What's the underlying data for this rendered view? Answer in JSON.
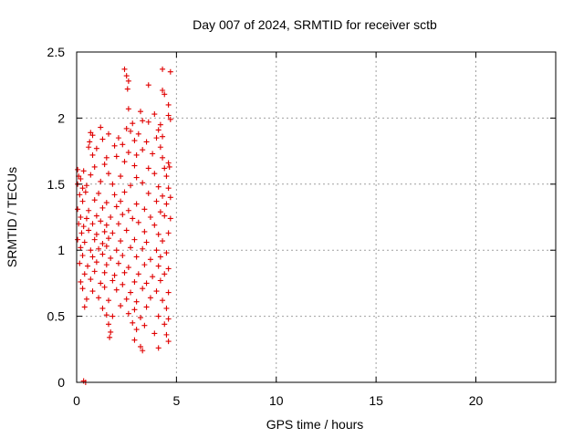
{
  "chart_data": {
    "type": "scatter",
    "title": "Day 007 of 2024, SRMTID for receiver sctb",
    "xlabel": "GPS time / hours",
    "ylabel": "SRMTID / TECUs",
    "xlim": [
      0,
      24
    ],
    "ylim": [
      0,
      2.5
    ],
    "xticks": [
      0,
      5,
      10,
      15,
      20
    ],
    "xtick_labels": [
      "0",
      "5",
      "10",
      "15",
      "20"
    ],
    "yticks": [
      0,
      0.5,
      1,
      1.5,
      2,
      2.5
    ],
    "ytick_labels": [
      "0",
      "0.5",
      "1",
      "1.5",
      "2",
      "2.5"
    ],
    "grid": true,
    "marker": "+",
    "color": "#e00000",
    "series": [
      {
        "name": "SRMTID",
        "points": [
          [
            2.4,
            2.37
          ],
          [
            2.5,
            2.32
          ],
          [
            2.6,
            2.28
          ],
          [
            2.55,
            2.22
          ],
          [
            3.6,
            2.25
          ],
          [
            4.3,
            2.37
          ],
          [
            4.7,
            2.35
          ],
          [
            4.3,
            2.21
          ],
          [
            4.4,
            2.18
          ],
          [
            4.6,
            2.1
          ],
          [
            2.6,
            2.07
          ],
          [
            3.2,
            2.05
          ],
          [
            3.9,
            2.03
          ],
          [
            4.6,
            2.02
          ],
          [
            4.7,
            1.99
          ],
          [
            1.2,
            1.93
          ],
          [
            2.8,
            1.96
          ],
          [
            3.3,
            1.98
          ],
          [
            3.6,
            1.97
          ],
          [
            4.2,
            1.95
          ],
          [
            0.7,
            1.89
          ],
          [
            0.8,
            1.87
          ],
          [
            1.6,
            1.88
          ],
          [
            2.5,
            1.92
          ],
          [
            2.7,
            1.9
          ],
          [
            3.1,
            1.88
          ],
          [
            4.1,
            1.91
          ],
          [
            4.3,
            1.86
          ],
          [
            0.65,
            1.82
          ],
          [
            1.3,
            1.84
          ],
          [
            2.1,
            1.85
          ],
          [
            2.9,
            1.83
          ],
          [
            3.5,
            1.82
          ],
          [
            4.0,
            1.85
          ],
          [
            0.6,
            1.78
          ],
          [
            1.0,
            1.77
          ],
          [
            1.9,
            1.79
          ],
          [
            2.3,
            1.8
          ],
          [
            3.3,
            1.76
          ],
          [
            4.2,
            1.78
          ],
          [
            0.8,
            1.72
          ],
          [
            1.5,
            1.7
          ],
          [
            2.6,
            1.74
          ],
          [
            2.0,
            1.71
          ],
          [
            3.0,
            1.72
          ],
          [
            3.8,
            1.73
          ],
          [
            4.3,
            1.7
          ],
          [
            4.6,
            1.66
          ],
          [
            4.65,
            1.63
          ],
          [
            0.05,
            1.61
          ],
          [
            0.35,
            1.6
          ],
          [
            0.9,
            1.63
          ],
          [
            1.4,
            1.65
          ],
          [
            2.4,
            1.67
          ],
          [
            2.9,
            1.64
          ],
          [
            3.6,
            1.62
          ],
          [
            4.4,
            1.62
          ],
          [
            0.1,
            1.56
          ],
          [
            0.2,
            1.54
          ],
          [
            0.7,
            1.57
          ],
          [
            1.6,
            1.58
          ],
          [
            2.2,
            1.56
          ],
          [
            3.0,
            1.55
          ],
          [
            3.9,
            1.58
          ],
          [
            4.5,
            1.56
          ],
          [
            0.05,
            1.5
          ],
          [
            0.3,
            1.47
          ],
          [
            0.5,
            1.49
          ],
          [
            1.2,
            1.52
          ],
          [
            1.8,
            1.5
          ],
          [
            2.7,
            1.49
          ],
          [
            3.3,
            1.51
          ],
          [
            4.1,
            1.48
          ],
          [
            4.6,
            1.47
          ],
          [
            0.15,
            1.42
          ],
          [
            0.45,
            1.44
          ],
          [
            1.1,
            1.43
          ],
          [
            1.9,
            1.42
          ],
          [
            2.4,
            1.44
          ],
          [
            3.6,
            1.43
          ],
          [
            4.3,
            1.41
          ],
          [
            4.7,
            1.4
          ],
          [
            0.3,
            1.37
          ],
          [
            0.9,
            1.38
          ],
          [
            1.5,
            1.36
          ],
          [
            2.2,
            1.37
          ],
          [
            3.0,
            1.35
          ],
          [
            4.0,
            1.37
          ],
          [
            4.5,
            1.35
          ],
          [
            0.05,
            1.31
          ],
          [
            0.6,
            1.3
          ],
          [
            1.3,
            1.32
          ],
          [
            2.0,
            1.33
          ],
          [
            2.6,
            1.3
          ],
          [
            3.4,
            1.31
          ],
          [
            4.2,
            1.29
          ],
          [
            0.2,
            1.25
          ],
          [
            0.5,
            1.24
          ],
          [
            1.0,
            1.26
          ],
          [
            1.7,
            1.25
          ],
          [
            2.3,
            1.27
          ],
          [
            2.8,
            1.24
          ],
          [
            3.7,
            1.25
          ],
          [
            4.4,
            1.26
          ],
          [
            4.7,
            1.24
          ],
          [
            0.1,
            1.2
          ],
          [
            0.35,
            1.18
          ],
          [
            0.8,
            1.2
          ],
          [
            1.2,
            1.22
          ],
          [
            1.5,
            1.19
          ],
          [
            2.1,
            1.2
          ],
          [
            3.1,
            1.21
          ],
          [
            3.9,
            1.19
          ],
          [
            0.25,
            1.13
          ],
          [
            0.6,
            1.15
          ],
          [
            1.0,
            1.12
          ],
          [
            1.4,
            1.14
          ],
          [
            1.8,
            1.13
          ],
          [
            2.5,
            1.15
          ],
          [
            3.4,
            1.14
          ],
          [
            4.1,
            1.12
          ],
          [
            4.6,
            1.13
          ],
          [
            0.05,
            1.08
          ],
          [
            0.4,
            1.06
          ],
          [
            0.9,
            1.08
          ],
          [
            1.3,
            1.05
          ],
          [
            1.6,
            1.09
          ],
          [
            2.2,
            1.07
          ],
          [
            2.9,
            1.08
          ],
          [
            3.5,
            1.06
          ],
          [
            4.3,
            1.07
          ],
          [
            0.2,
            1.02
          ],
          [
            0.7,
            1.0
          ],
          [
            1.1,
            1.01
          ],
          [
            1.5,
            1.03
          ],
          [
            2.0,
            1.0
          ],
          [
            2.7,
            1.02
          ],
          [
            3.3,
            1.01
          ],
          [
            4.0,
            1.0
          ],
          [
            4.5,
            0.98
          ],
          [
            0.3,
            0.96
          ],
          [
            0.8,
            0.95
          ],
          [
            1.3,
            0.97
          ],
          [
            1.7,
            0.94
          ],
          [
            2.3,
            0.96
          ],
          [
            3.0,
            0.95
          ],
          [
            3.7,
            0.93
          ],
          [
            4.2,
            0.95
          ],
          [
            0.15,
            0.9
          ],
          [
            0.55,
            0.88
          ],
          [
            1.0,
            0.91
          ],
          [
            1.5,
            0.89
          ],
          [
            2.1,
            0.9
          ],
          [
            2.6,
            0.87
          ],
          [
            3.4,
            0.89
          ],
          [
            4.1,
            0.88
          ],
          [
            4.6,
            0.86
          ],
          [
            0.4,
            0.82
          ],
          [
            0.9,
            0.84
          ],
          [
            1.4,
            0.83
          ],
          [
            1.9,
            0.81
          ],
          [
            2.4,
            0.83
          ],
          [
            3.1,
            0.82
          ],
          [
            3.8,
            0.8
          ],
          [
            4.4,
            0.82
          ],
          [
            0.2,
            0.76
          ],
          [
            0.7,
            0.78
          ],
          [
            1.2,
            0.75
          ],
          [
            1.8,
            0.77
          ],
          [
            2.3,
            0.74
          ],
          [
            2.9,
            0.76
          ],
          [
            3.5,
            0.75
          ],
          [
            4.2,
            0.77
          ],
          [
            0.3,
            0.71
          ],
          [
            0.8,
            0.69
          ],
          [
            1.4,
            0.72
          ],
          [
            2.0,
            0.7
          ],
          [
            2.7,
            0.68
          ],
          [
            3.3,
            0.71
          ],
          [
            4.0,
            0.69
          ],
          [
            4.6,
            0.68
          ],
          [
            0.5,
            0.63
          ],
          [
            1.1,
            0.64
          ],
          [
            1.6,
            0.62
          ],
          [
            2.5,
            0.63
          ],
          [
            3.0,
            0.61
          ],
          [
            3.7,
            0.64
          ],
          [
            4.3,
            0.62
          ],
          [
            0.4,
            0.57
          ],
          [
            1.3,
            0.56
          ],
          [
            2.2,
            0.58
          ],
          [
            2.9,
            0.55
          ],
          [
            3.5,
            0.57
          ],
          [
            4.5,
            0.56
          ],
          [
            1.5,
            0.51
          ],
          [
            1.8,
            0.5
          ],
          [
            2.6,
            0.52
          ],
          [
            3.2,
            0.49
          ],
          [
            4.1,
            0.5
          ],
          [
            4.6,
            0.48
          ],
          [
            1.6,
            0.44
          ],
          [
            2.8,
            0.45
          ],
          [
            3.4,
            0.43
          ],
          [
            4.4,
            0.44
          ],
          [
            1.7,
            0.38
          ],
          [
            3.0,
            0.4
          ],
          [
            3.9,
            0.37
          ],
          [
            4.5,
            0.36
          ],
          [
            1.65,
            0.34
          ],
          [
            2.9,
            0.32
          ],
          [
            4.6,
            0.31
          ],
          [
            3.2,
            0.27
          ],
          [
            3.3,
            0.24
          ],
          [
            4.1,
            0.26
          ],
          [
            0.35,
            0.01
          ],
          [
            0.45,
            0.0
          ]
        ]
      }
    ]
  }
}
